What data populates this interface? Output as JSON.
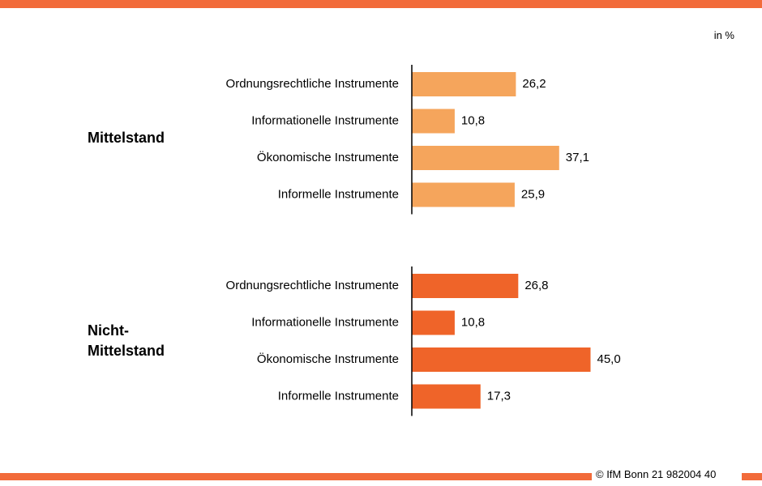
{
  "unit_note": "in %",
  "footer": "© IfM Bonn 21 982004 40",
  "chart_data": [
    {
      "type": "bar",
      "orientation": "horizontal",
      "group_label": "Mittelstand",
      "categories": [
        "Ordnungsrechtliche Instrumente",
        "Informationelle Instrumente",
        "Ökonomische Instrumente",
        "Informelle Instrumente"
      ],
      "values": [
        26.2,
        10.8,
        37.1,
        25.9
      ],
      "value_labels": [
        "26,2",
        "10,8",
        "37,1",
        "25,9"
      ],
      "color": "#f5a55c"
    },
    {
      "type": "bar",
      "orientation": "horizontal",
      "group_label": "Nicht-\nMittelstand",
      "categories": [
        "Ordnungsrechtliche Instrumente",
        "Informationelle Instrumente",
        "Ökonomische Instrumente",
        "Informelle Instrumente"
      ],
      "values": [
        26.8,
        10.8,
        45.0,
        17.3
      ],
      "value_labels": [
        "26,8",
        "10,8",
        "45,0",
        "17,3"
      ],
      "color": "#ef6429"
    }
  ]
}
